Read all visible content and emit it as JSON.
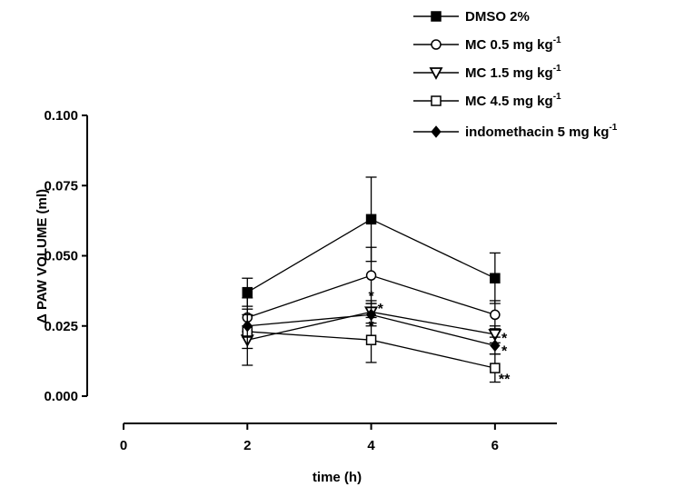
{
  "chart_data": {
    "type": "line",
    "title": "",
    "xlabel": "time (h)",
    "ylabel": "Δ PAW VOLUME (ml)",
    "xlim": [
      0,
      7
    ],
    "ylim": [
      0,
      0.1
    ],
    "x_ticks": [
      "0",
      "2",
      "4",
      "6"
    ],
    "y_ticks": [
      "0.000",
      "0.025",
      "0.050",
      "0.075",
      "0.100"
    ],
    "legend_placement": "top-right",
    "grid": false,
    "x": [
      2,
      4,
      6
    ],
    "series": [
      {
        "name": "DMSO 2%",
        "marker": "filled-square",
        "sup": "",
        "values": [
          0.037,
          0.063,
          0.042
        ],
        "errors": [
          0.005,
          0.015,
          0.009
        ]
      },
      {
        "name": "MC 0.5 mg kg",
        "marker": "open-circle",
        "sup": "-1",
        "values": [
          0.028,
          0.043,
          0.029
        ],
        "errors": [
          0.003,
          0.01,
          0.005
        ]
      },
      {
        "name": "MC 1.5 mg kg",
        "marker": "open-triangle-down",
        "sup": "-1",
        "values": [
          0.02,
          0.03,
          0.022
        ],
        "errors": [
          0.003,
          0.004,
          0.003
        ]
      },
      {
        "name": "MC 4.5 mg kg",
        "marker": "open-square",
        "sup": "-1",
        "values": [
          0.023,
          0.02,
          0.01
        ],
        "errors": [
          0.012,
          0.008,
          0.005
        ]
      },
      {
        "name": "indomethacin 5 mg kg",
        "marker": "filled-diamond",
        "sup": "-1",
        "values": [
          0.025,
          0.029,
          0.018
        ],
        "errors": [
          0.004,
          0.004,
          0.003
        ]
      }
    ],
    "annotations": [
      {
        "text": "*",
        "x": 4,
        "y": 0.0365
      },
      {
        "text": "*",
        "x": 4,
        "y": 0.026
      },
      {
        "text": "*",
        "x": 4.15,
        "y": 0.032
      },
      {
        "text": "*",
        "x": 6.15,
        "y": 0.0215
      },
      {
        "text": "*",
        "x": 6.15,
        "y": 0.017
      },
      {
        "text": "**",
        "x": 6.15,
        "y": 0.007
      }
    ]
  }
}
